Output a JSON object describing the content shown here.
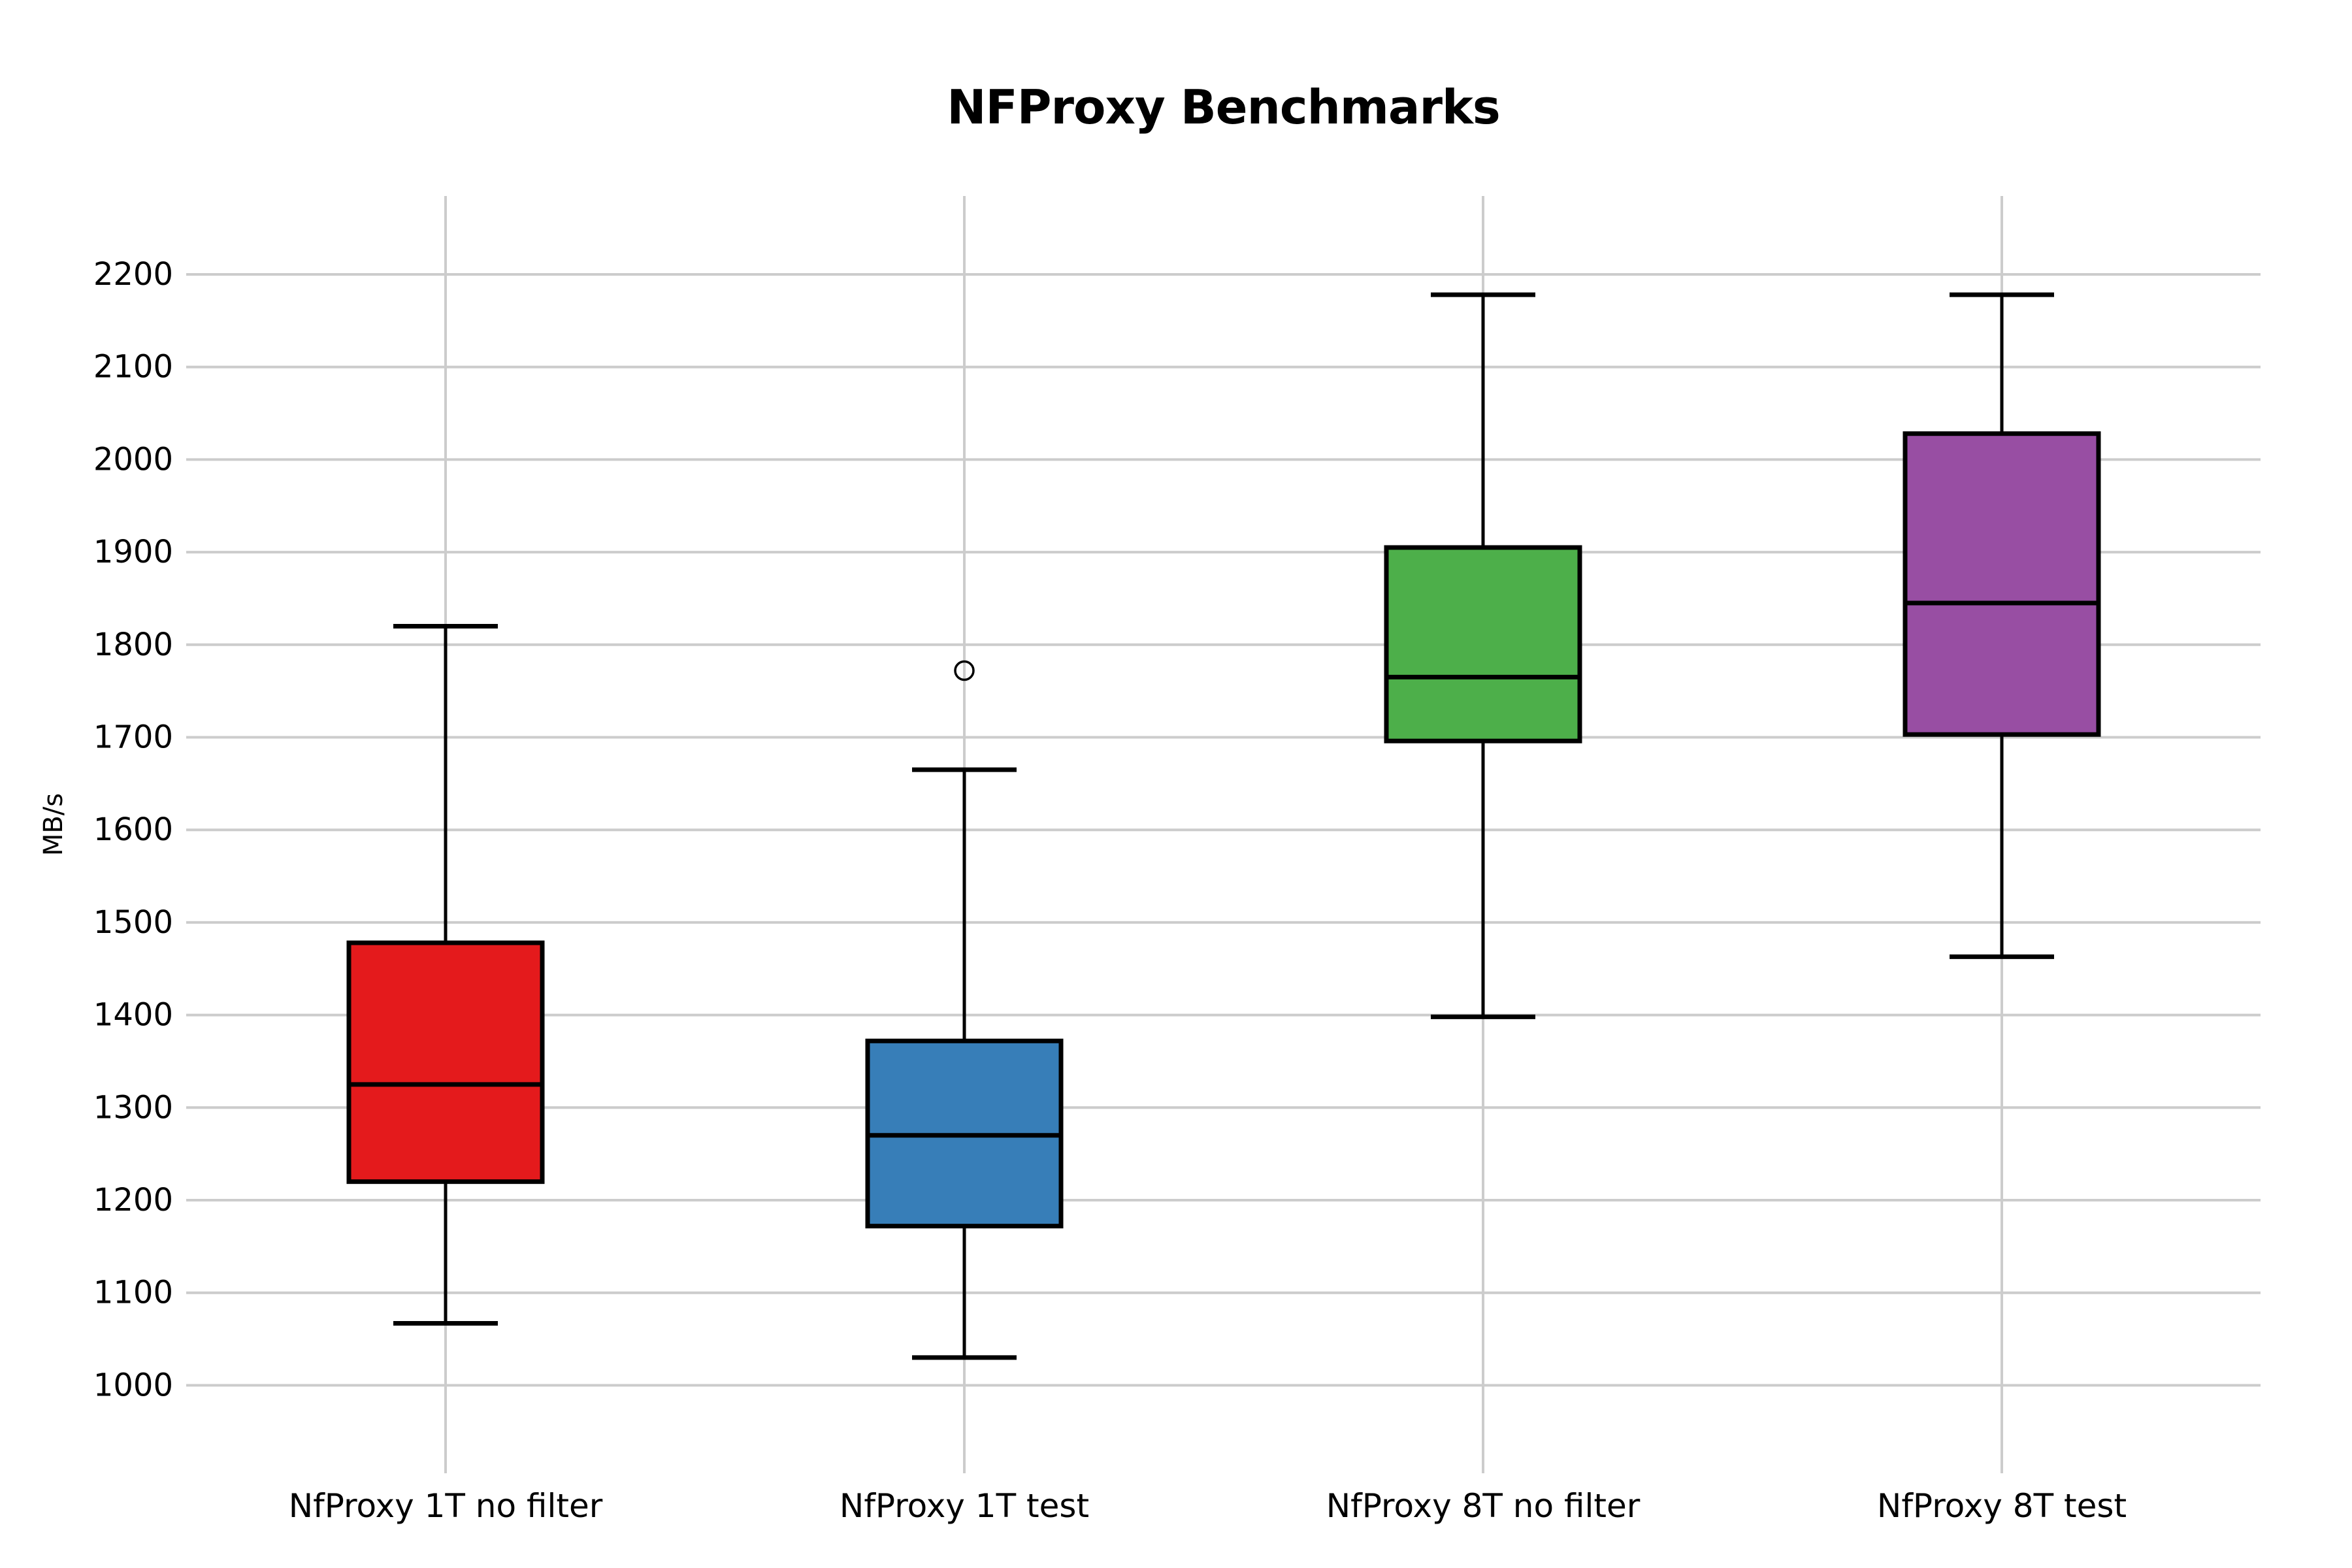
{
  "chart_data": {
    "type": "boxplot",
    "title": "NFProxy Benchmarks",
    "xlabel": "",
    "ylabel": "MB/s",
    "categories": [
      "NfProxy 1T no filter",
      "NfProxy 1T test",
      "NfProxy 8T no filter",
      "NfProxy 8T test"
    ],
    "series": [
      {
        "name": "NfProxy 1T no filter",
        "color": "#e41a1c",
        "whisker_low": 1067,
        "q1": 1220,
        "median": 1325,
        "q3": 1478,
        "whisker_high": 1820,
        "outliers": []
      },
      {
        "name": "NfProxy 1T test",
        "color": "#377eb8",
        "whisker_low": 1030,
        "q1": 1172,
        "median": 1270,
        "q3": 1372,
        "whisker_high": 1665,
        "outliers": [
          1772
        ]
      },
      {
        "name": "NfProxy 8T no filter",
        "color": "#4daf4a",
        "whisker_low": 1398,
        "q1": 1696,
        "median": 1765,
        "q3": 1905,
        "whisker_high": 2178,
        "outliers": []
      },
      {
        "name": "NfProxy 8T test",
        "color": "#984ea3",
        "whisker_low": 1463,
        "q1": 1703,
        "median": 1845,
        "q3": 2028,
        "whisker_high": 2178,
        "outliers": []
      }
    ],
    "yticks": [
      1000,
      1100,
      1200,
      1300,
      1400,
      1500,
      1600,
      1700,
      1800,
      1900,
      2000,
      2100,
      2200
    ],
    "ylim": [
      1000,
      2200
    ],
    "grid": true,
    "gridline_color": "#cccccc",
    "box_edge_color": "#000000",
    "legend": "none"
  }
}
